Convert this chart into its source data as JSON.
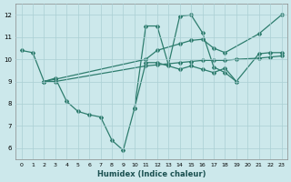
{
  "xlabel": "Humidex (Indice chaleur)",
  "bg_color": "#cce8eb",
  "line_color": "#2e7d6e",
  "grid_color": "#aacfd4",
  "xlim": [
    -0.5,
    23.5
  ],
  "ylim": [
    5.5,
    12.5
  ],
  "xticks": [
    0,
    1,
    2,
    3,
    4,
    5,
    6,
    7,
    8,
    9,
    10,
    11,
    12,
    13,
    14,
    15,
    16,
    17,
    18,
    19,
    20,
    21,
    22,
    23
  ],
  "yticks": [
    6,
    7,
    8,
    9,
    10,
    11,
    12
  ],
  "line1_x": [
    0,
    1,
    2,
    3,
    4,
    5,
    6,
    7,
    8,
    9,
    10,
    11,
    12,
    13,
    14,
    15,
    16,
    17,
    18,
    19,
    21,
    22,
    23
  ],
  "line1_y": [
    10.4,
    10.3,
    9.0,
    9.15,
    8.1,
    7.65,
    7.5,
    7.4,
    6.35,
    5.9,
    7.8,
    9.85,
    9.85,
    9.7,
    9.55,
    9.7,
    9.55,
    9.4,
    9.6,
    9.0,
    10.25,
    10.3,
    10.3
  ],
  "line2_x": [
    2,
    3,
    11,
    12,
    14,
    15,
    16,
    17,
    18,
    19,
    21,
    22,
    23
  ],
  "line2_y": [
    9.0,
    9.0,
    9.7,
    9.75,
    9.85,
    9.9,
    9.95,
    9.95,
    9.95,
    10.0,
    10.05,
    10.1,
    10.15
  ],
  "line3_x": [
    2,
    3,
    11,
    12,
    14,
    15,
    16,
    17,
    18,
    21,
    23
  ],
  "line3_y": [
    9.0,
    9.1,
    10.0,
    10.4,
    10.7,
    10.85,
    10.9,
    10.5,
    10.3,
    11.15,
    12.0
  ],
  "line4_x": [
    10,
    11,
    12,
    13,
    14,
    15,
    16,
    17,
    18,
    19
  ],
  "line4_y": [
    7.8,
    11.5,
    11.5,
    9.75,
    11.95,
    12.0,
    11.2,
    9.65,
    9.4,
    9.0
  ]
}
